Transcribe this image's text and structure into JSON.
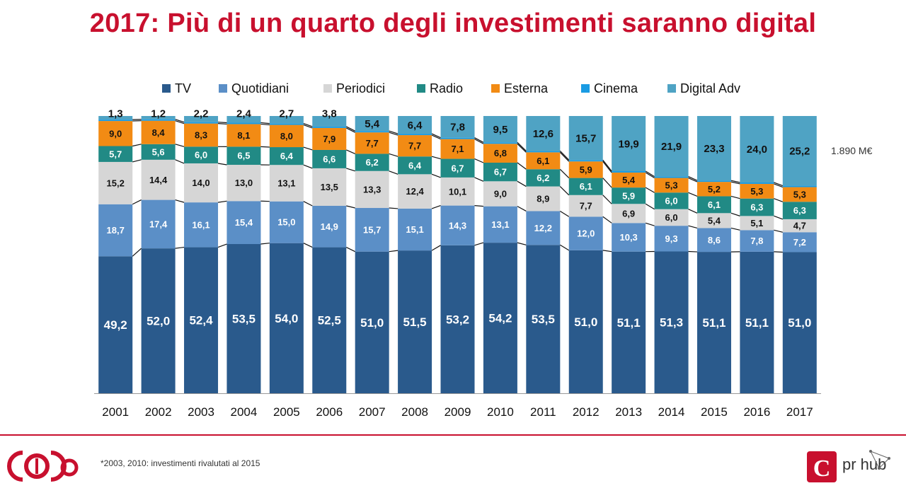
{
  "title": "2017: Più di un quarto degli investimenti saranno digital",
  "total_label": "1.890 M€",
  "footnote": "*2003, 2010: investimenti rivalutati al 2015",
  "logo_right_text": "pr hub",
  "chart_data": {
    "type": "bar",
    "stacked": true,
    "title": "2017: Più di un quarto degli investimenti saranno digital",
    "xlabel": "",
    "ylabel": "",
    "ylim": [
      0,
      100
    ],
    "legend_position": "top",
    "categories": [
      "2001",
      "2002",
      "2003",
      "2004",
      "2005",
      "2006",
      "2007",
      "2008",
      "2009",
      "2010",
      "2011",
      "2012",
      "2013",
      "2014",
      "2015",
      "2016",
      "2017"
    ],
    "series": [
      {
        "name": "TV",
        "color": "#2a5a8c",
        "values": [
          49.2,
          52.0,
          52.4,
          53.5,
          54.0,
          52.5,
          51.0,
          51.5,
          53.2,
          54.2,
          53.5,
          51.0,
          51.1,
          51.3,
          51.1,
          51.1,
          51.0
        ]
      },
      {
        "name": "Quotidiani",
        "color": "#5b8fc7",
        "values": [
          18.7,
          17.4,
          16.1,
          15.4,
          15.0,
          14.9,
          15.7,
          15.1,
          14.3,
          13.1,
          12.2,
          12.0,
          10.3,
          9.3,
          8.6,
          7.8,
          7.2
        ]
      },
      {
        "name": "Periodici",
        "color": "#d6d6d6",
        "values": [
          15.2,
          14.4,
          14.0,
          13.0,
          13.1,
          13.5,
          13.3,
          12.4,
          10.1,
          9.0,
          8.9,
          7.7,
          6.9,
          6.0,
          5.4,
          5.1,
          4.7
        ]
      },
      {
        "name": "Radio",
        "color": "#218a85",
        "values": [
          5.7,
          5.6,
          6.0,
          6.5,
          6.4,
          6.6,
          6.2,
          6.4,
          6.7,
          6.7,
          6.2,
          6.1,
          5.9,
          6.0,
          6.1,
          6.3,
          6.3
        ]
      },
      {
        "name": "Esterna",
        "color": "#f28b14",
        "values": [
          9.0,
          8.4,
          8.3,
          8.1,
          8.0,
          7.9,
          7.7,
          7.7,
          7.1,
          6.8,
          6.1,
          5.9,
          5.4,
          5.3,
          5.2,
          5.3,
          5.3
        ]
      },
      {
        "name": "Cinema",
        "color": "#1a9be3",
        "values": [
          0.5,
          0.5,
          0.5,
          0.5,
          0.5,
          0.5,
          0.5,
          0.5,
          0.5,
          0.5,
          0.5,
          0.5,
          0.5,
          0.5,
          0.5,
          0.5,
          0.5
        ]
      },
      {
        "name": "Digital Adv",
        "color": "#4fa3c4",
        "values": [
          1.3,
          1.2,
          2.2,
          2.4,
          2.7,
          3.8,
          5.4,
          6.4,
          7.8,
          9.5,
          12.6,
          15.7,
          19.9,
          21.9,
          23.3,
          24.0,
          25.2
        ]
      }
    ],
    "label_colors": {
      "TV": "#ffffff",
      "Quotidiani": "#ffffff",
      "Periodici": "#111111",
      "Radio": "#ffffff",
      "Esterna": "#111111",
      "Digital Adv": "#111111"
    },
    "series_labels": {
      "TV": [
        "49,2",
        "52,0",
        "52,4",
        "53,5",
        "54,0",
        "52,5",
        "51,0",
        "51,5",
        "53,2",
        "54,2",
        "53,5",
        "51,0",
        "51,1",
        "51,3",
        "51,1",
        "51,1",
        "51,0"
      ],
      "Quotidiani": [
        "18,7",
        "17,4",
        "16,1",
        "15,4",
        "15,0",
        "14,9",
        "15,7",
        "15,1",
        "14,3",
        "13,1",
        "12,2",
        "12,0",
        "10,3",
        "9,3",
        "8,6",
        "7,8",
        "7,2"
      ],
      "Periodici": [
        "15,2",
        "14,4",
        "14,0",
        "13,0",
        "13,1",
        "13,5",
        "13,3",
        "12,4",
        "10,1",
        "9,0",
        "8,9",
        "7,7",
        "6,9",
        "6,0",
        "5,4",
        "5,1",
        "4,7"
      ],
      "Radio": [
        "5,7",
        "5,6",
        "6,0",
        "6,5",
        "6,4",
        "6,6",
        "6,2",
        "6,4",
        "6,7",
        "6,7",
        "6,2",
        "6,1",
        "5,9",
        "6,0",
        "6,1",
        "6,3",
        "6,3"
      ],
      "Esterna": [
        "9,0",
        "8,4",
        "8,3",
        "8,1",
        "8,0",
        "7,9",
        "7,7",
        "7,7",
        "7,1",
        "6,8",
        "6,1",
        "5,9",
        "5,4",
        "5,3",
        "5,2",
        "5,3",
        "5,3"
      ],
      "Digital Adv": [
        "1,3",
        "1,2",
        "2,2",
        "2,4",
        "2,7",
        "3,8",
        "5,4",
        "6,4",
        "7,8",
        "9,5",
        "12,6",
        "15,7",
        "19,9",
        "21,9",
        "23,3",
        "24,0",
        "25,2"
      ]
    }
  }
}
